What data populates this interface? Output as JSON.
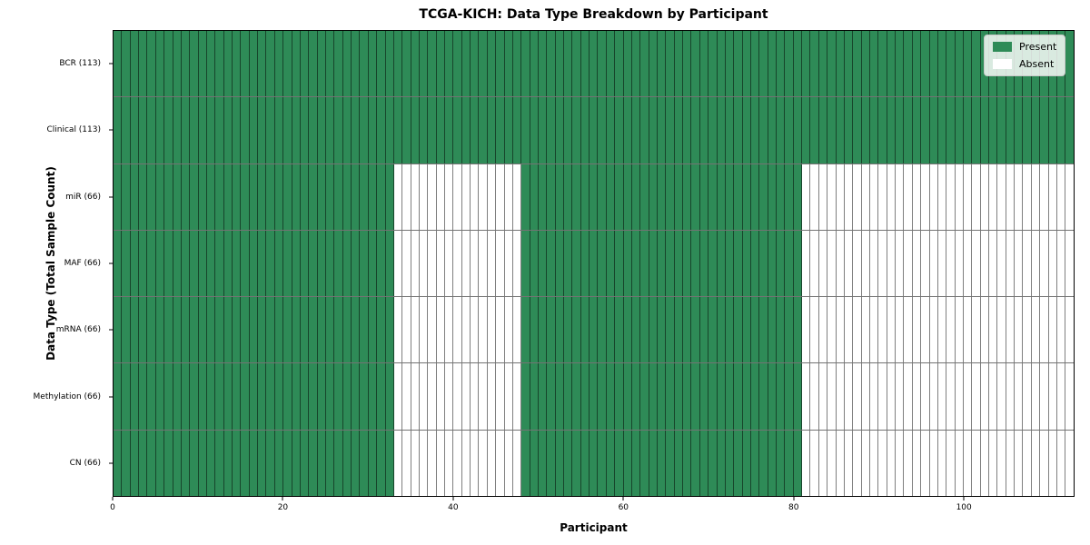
{
  "chart_data": {
    "type": "heatmap",
    "title": "TCGA-KICH: Data Type Breakdown by Participant",
    "xlabel": "Participant",
    "ylabel": "Data Type (Total Sample Count)",
    "n_participants": 113,
    "xlim": [
      0,
      113
    ],
    "x_ticks": [
      0,
      20,
      40,
      60,
      80,
      100
    ],
    "grid": false,
    "legend_position": "upper right",
    "colors": {
      "present": "#2e8b57",
      "absent": "#ffffff",
      "cell_border": "rgba(0,0,0,0.5)",
      "spine": "#000000"
    },
    "legend_items": [
      {
        "label": "Present",
        "color": "#2e8b57"
      },
      {
        "label": "Absent",
        "color": "#ffffff"
      }
    ],
    "rows": [
      {
        "label": "BCR (113)",
        "data_type": "BCR",
        "total_samples": 113,
        "present_ranges": [
          [
            0,
            113
          ]
        ]
      },
      {
        "label": "Clinical (113)",
        "data_type": "Clinical",
        "total_samples": 113,
        "present_ranges": [
          [
            0,
            113
          ]
        ]
      },
      {
        "label": "miR (66)",
        "data_type": "miR",
        "total_samples": 66,
        "present_ranges": [
          [
            0,
            33
          ],
          [
            48,
            81
          ]
        ]
      },
      {
        "label": "MAF (66)",
        "data_type": "MAF",
        "total_samples": 66,
        "present_ranges": [
          [
            0,
            33
          ],
          [
            48,
            81
          ]
        ]
      },
      {
        "label": "mRNA (66)",
        "data_type": "mRNA",
        "total_samples": 66,
        "present_ranges": [
          [
            0,
            33
          ],
          [
            48,
            81
          ]
        ]
      },
      {
        "label": "Methylation (66)",
        "data_type": "Methylation",
        "total_samples": 66,
        "present_ranges": [
          [
            0,
            33
          ],
          [
            48,
            81
          ]
        ]
      },
      {
        "label": "CN (66)",
        "data_type": "CN",
        "total_samples": 66,
        "present_ranges": [
          [
            0,
            33
          ],
          [
            48,
            81
          ]
        ]
      }
    ]
  }
}
